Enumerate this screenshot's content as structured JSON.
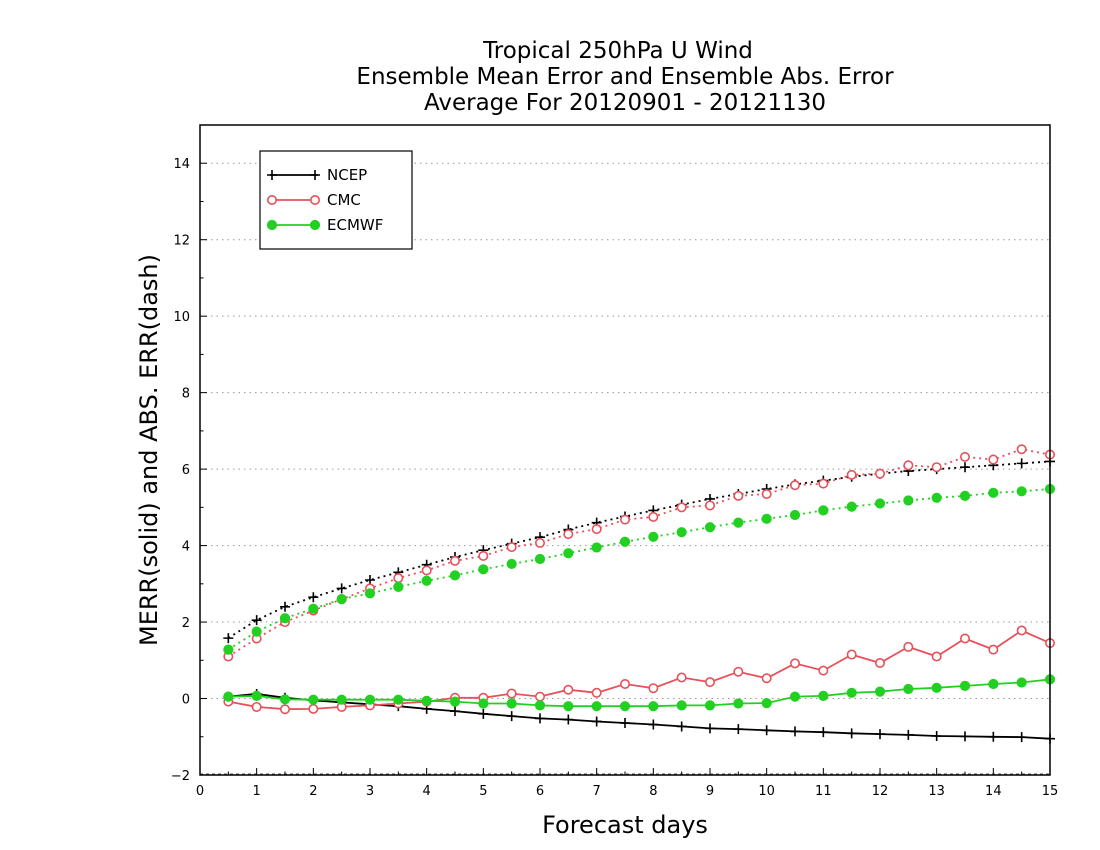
{
  "chart_data": {
    "type": "line",
    "title_lines": [
      "Tropical 250hPa U Wind",
      "Ensemble Mean Error and Ensemble Abs. Error",
      "Average For 20120901 - 20121130"
    ],
    "xlabel": "Forecast days",
    "ylabel": "MERR(solid) and ABS. ERR(dash)",
    "xlim": [
      0,
      15
    ],
    "ylim": [
      -2,
      15
    ],
    "x_ticks": [
      "0",
      "1",
      "2",
      "3",
      "4",
      "5",
      "6",
      "7",
      "8",
      "9",
      "10",
      "11",
      "12",
      "13",
      "14",
      "15"
    ],
    "y_ticks": [
      "−2",
      "0",
      "2",
      "4",
      "6",
      "8",
      "10",
      "12",
      "14"
    ],
    "y_tick_values": [
      -2,
      0,
      2,
      4,
      6,
      8,
      10,
      12,
      14
    ],
    "grid": "horizontal dotted",
    "legend_position": "top-left",
    "x": [
      0.5,
      1,
      1.5,
      2,
      2.5,
      3,
      3.5,
      4,
      4.5,
      5,
      5.5,
      6,
      6.5,
      7,
      7.5,
      8,
      8.5,
      9,
      9.5,
      10,
      10.5,
      11,
      11.5,
      12,
      12.5,
      13,
      13.5,
      14,
      14.5,
      15
    ],
    "series": [
      {
        "name": "NCEP",
        "color": "#000000",
        "marker": "plus",
        "merr": [
          0.05,
          0.12,
          0.02,
          -0.05,
          -0.1,
          -0.15,
          -0.2,
          -0.27,
          -0.33,
          -0.4,
          -0.46,
          -0.52,
          -0.55,
          -0.6,
          -0.64,
          -0.68,
          -0.73,
          -0.78,
          -0.8,
          -0.83,
          -0.86,
          -0.88,
          -0.91,
          -0.93,
          -0.95,
          -0.98,
          -0.99,
          -1.0,
          -1.01,
          -1.05
        ],
        "abs_err": [
          1.58,
          2.05,
          2.4,
          2.65,
          2.88,
          3.1,
          3.3,
          3.5,
          3.7,
          3.88,
          4.05,
          4.22,
          4.42,
          4.6,
          4.76,
          4.92,
          5.07,
          5.22,
          5.35,
          5.48,
          5.6,
          5.7,
          5.8,
          5.88,
          5.95,
          6.0,
          6.05,
          6.1,
          6.15,
          6.2
        ]
      },
      {
        "name": "CMC",
        "color": "#e8505a",
        "marker": "open-circle",
        "merr": [
          -0.08,
          -0.22,
          -0.28,
          -0.27,
          -0.22,
          -0.18,
          -0.13,
          -0.08,
          0.02,
          0.02,
          0.13,
          0.05,
          0.23,
          0.15,
          0.38,
          0.27,
          0.55,
          0.43,
          0.7,
          0.53,
          0.92,
          0.73,
          1.15,
          0.93,
          1.35,
          1.1,
          1.57,
          1.28,
          1.78,
          1.45
        ],
        "abs_err": [
          1.1,
          1.57,
          2.0,
          2.3,
          2.6,
          2.88,
          3.15,
          3.35,
          3.6,
          3.73,
          3.96,
          4.07,
          4.3,
          4.43,
          4.68,
          4.75,
          5.0,
          5.05,
          5.3,
          5.35,
          5.58,
          5.62,
          5.85,
          5.88,
          6.1,
          6.05,
          6.32,
          6.25,
          6.52,
          6.38
        ]
      },
      {
        "name": "ECMWF",
        "color": "#22d022",
        "marker": "filled-circle",
        "merr": [
          0.05,
          0.07,
          -0.02,
          -0.03,
          -0.03,
          -0.03,
          -0.03,
          -0.06,
          -0.08,
          -0.13,
          -0.13,
          -0.18,
          -0.2,
          -0.2,
          -0.2,
          -0.2,
          -0.18,
          -0.18,
          -0.13,
          -0.12,
          0.05,
          0.07,
          0.15,
          0.18,
          0.25,
          0.28,
          0.33,
          0.38,
          0.42,
          0.5
        ],
        "abs_err": [
          1.28,
          1.75,
          2.1,
          2.35,
          2.6,
          2.75,
          2.92,
          3.08,
          3.22,
          3.38,
          3.52,
          3.65,
          3.8,
          3.95,
          4.1,
          4.23,
          4.35,
          4.48,
          4.6,
          4.7,
          4.8,
          4.92,
          5.02,
          5.1,
          5.18,
          5.25,
          5.3,
          5.38,
          5.42,
          5.48
        ]
      }
    ]
  }
}
